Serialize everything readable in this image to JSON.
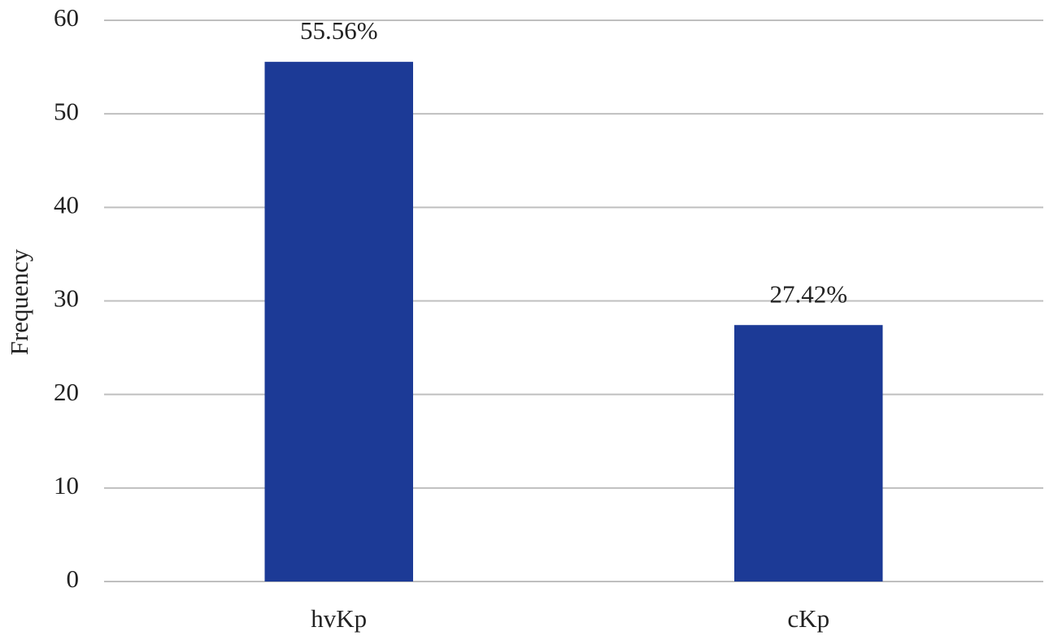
{
  "chart_data": {
    "type": "bar",
    "y_label": "Frequency",
    "categories": [
      "hvKp",
      "cKp"
    ],
    "values": [
      55.56,
      27.42
    ],
    "value_labels": [
      "55.56%",
      "27.42%"
    ],
    "color": "#1c3a96",
    "ylim": [
      0,
      60
    ],
    "yticks": [
      0,
      10,
      20,
      30,
      40,
      50,
      60
    ],
    "grid": true
  }
}
